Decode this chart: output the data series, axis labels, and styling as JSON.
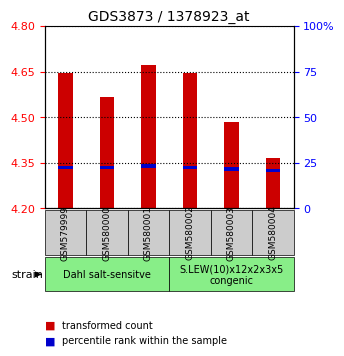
{
  "title": "GDS3873 / 1378923_at",
  "samples": [
    "GSM579999",
    "GSM580000",
    "GSM580001",
    "GSM580002",
    "GSM580003",
    "GSM580004"
  ],
  "transformed_counts": [
    4.645,
    4.565,
    4.67,
    4.645,
    4.485,
    4.365
  ],
  "percentile_ranks": [
    4.335,
    4.335,
    4.34,
    4.335,
    4.33,
    4.325
  ],
  "baseline": 4.2,
  "ylim": [
    4.2,
    4.8
  ],
  "yticks_left": [
    4.2,
    4.35,
    4.5,
    4.65,
    4.8
  ],
  "yticks_right": [
    0,
    25,
    50,
    75,
    100
  ],
  "bar_color": "#cc0000",
  "percentile_color": "#0000cc",
  "group1_label": "Dahl salt-sensitve",
  "group2_label": "S.LEW(10)x12x2x3x5\ncongenic",
  "group1_indices": [
    0,
    1,
    2
  ],
  "group2_indices": [
    3,
    4,
    5
  ],
  "group_bg_color": "#88ee88",
  "sample_bg_color": "#cccccc",
  "legend_red_label": "transformed count",
  "legend_blue_label": "percentile rank within the sample",
  "bar_width": 0.35,
  "percentile_bar_height": 0.012
}
